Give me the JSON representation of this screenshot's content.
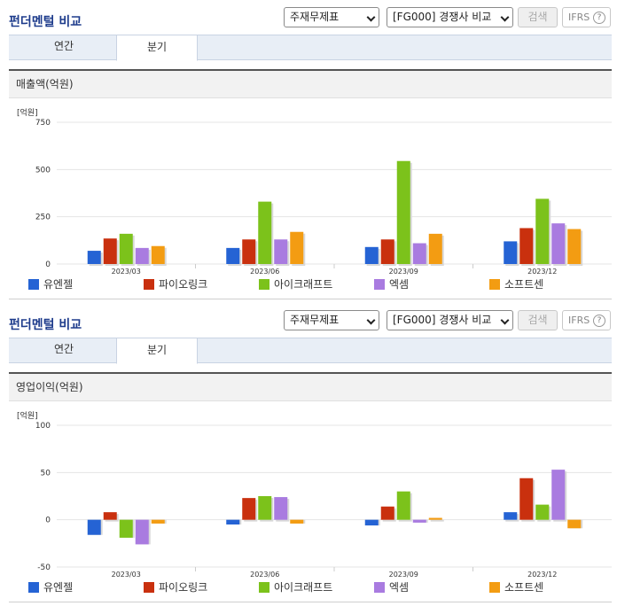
{
  "panels": [
    {
      "title": "펀더멘털 비교",
      "select1": "주재무제표",
      "select2": "[FG000] 경쟁사 비교",
      "search_label": "검색",
      "ifrs_label": "IFRS",
      "ifrs_help": "?",
      "tabs": [
        "연간",
        "분기"
      ],
      "chart_title": "매출액(억원)",
      "unit": "[억원]"
    },
    {
      "title": "펀더멘털 비교",
      "select1": "주재무제표",
      "select2": "[FG000] 경쟁사 비교",
      "search_label": "검색",
      "ifrs_label": "IFRS",
      "ifrs_help": "?",
      "tabs": [
        "연간",
        "분기"
      ],
      "chart_title": "영업이익(억원)",
      "unit": "[억원]"
    }
  ],
  "chart_data": [
    {
      "type": "bar",
      "title": "매출액(억원)",
      "ylabel": "[억원]",
      "categories": [
        "2023/03",
        "2023/06",
        "2023/09",
        "2023/12"
      ],
      "ylim": [
        0,
        750
      ],
      "yticks": [
        0,
        250,
        500,
        750
      ],
      "ytick_labels": [
        "0",
        "250",
        "500",
        "750"
      ],
      "grid": true,
      "legend": "bottom",
      "series": [
        {
          "name": "유엔젤",
          "color": "#2563d4",
          "values": [
            70,
            85,
            90,
            120
          ]
        },
        {
          "name": "파이오링크",
          "color": "#c9300e",
          "values": [
            135,
            130,
            130,
            190
          ]
        },
        {
          "name": "아이크래프트",
          "color": "#7cc21b",
          "values": [
            160,
            330,
            545,
            345
          ]
        },
        {
          "name": "엑셈",
          "color": "#a97be0",
          "values": [
            85,
            130,
            110,
            215
          ]
        },
        {
          "name": "소프트센",
          "color": "#f39c12",
          "values": [
            95,
            170,
            160,
            185
          ]
        }
      ]
    },
    {
      "type": "bar",
      "title": "영업이익(억원)",
      "ylabel": "[억원]",
      "categories": [
        "2023/03",
        "2023/06",
        "2023/09",
        "2023/12"
      ],
      "ylim": [
        -50,
        100
      ],
      "yticks": [
        -50,
        0,
        50,
        100
      ],
      "ytick_labels": [
        "-50",
        "0",
        "50",
        "100"
      ],
      "grid": true,
      "legend": "bottom",
      "series": [
        {
          "name": "유엔젤",
          "color": "#2563d4",
          "values": [
            -16,
            -5,
            -6,
            8
          ]
        },
        {
          "name": "파이오링크",
          "color": "#c9300e",
          "values": [
            8,
            23,
            14,
            44
          ]
        },
        {
          "name": "아이크래프트",
          "color": "#7cc21b",
          "values": [
            -19,
            25,
            30,
            16
          ]
        },
        {
          "name": "엑셈",
          "color": "#a97be0",
          "values": [
            -26,
            24,
            -3,
            53
          ]
        },
        {
          "name": "소프트센",
          "color": "#f39c12",
          "values": [
            -4,
            -4,
            2,
            -9
          ]
        }
      ]
    }
  ]
}
